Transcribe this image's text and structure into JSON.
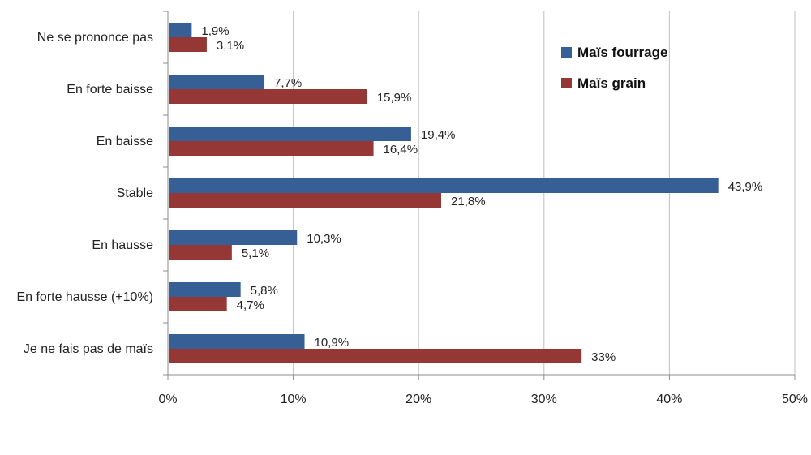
{
  "chart_data": {
    "type": "bar",
    "orientation": "horizontal",
    "categories": [
      "Ne se prononce pas",
      "En forte baisse",
      "En baisse",
      "Stable",
      "En hausse",
      "En forte hausse (+10%)",
      "Je ne fais pas de maïs"
    ],
    "series": [
      {
        "name": "Maïs fourrage",
        "color": "#365f95",
        "values": [
          1.9,
          7.7,
          19.4,
          43.9,
          10.3,
          5.8,
          10.9
        ],
        "labels": [
          "1,9%",
          "7,7%",
          "19,4%",
          "43,9%",
          "10,3%",
          "5,8%",
          "10,9%"
        ]
      },
      {
        "name": "Maïs grain",
        "color": "#953735",
        "values": [
          3.1,
          15.9,
          16.4,
          21.8,
          5.1,
          4.7,
          33
        ],
        "labels": [
          "3,1%",
          "15,9%",
          "16,4%",
          "21,8%",
          "5,1%",
          "4,7%",
          "33%"
        ]
      }
    ],
    "xlim": [
      0,
      50
    ],
    "ticks": [
      0,
      10,
      20,
      30,
      40,
      50
    ],
    "tick_labels": [
      "0%",
      "10%",
      "20%",
      "30%",
      "40%",
      "50%"
    ],
    "grid": true,
    "legend_position": "top-right",
    "title": "",
    "xlabel": "",
    "ylabel": ""
  }
}
